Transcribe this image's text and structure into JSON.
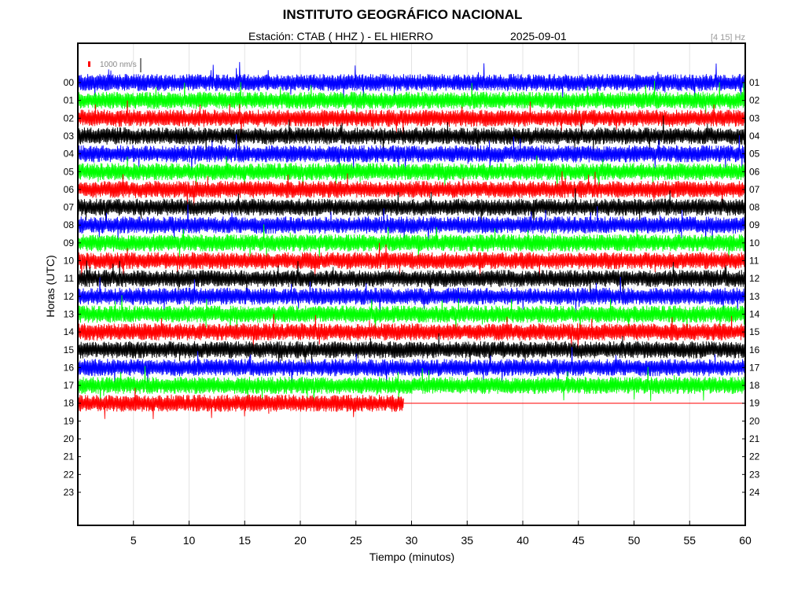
{
  "header": {
    "title": "INSTITUTO GEOGRÁFICO NACIONAL",
    "station_line": "Estación:  CTAB ( HHZ ) - EL HIERRO",
    "date": "2025-09-01",
    "filter": "[4 15] Hz"
  },
  "chart_data": {
    "type": "line",
    "xlabel": "Tiempo (minutos)",
    "ylabel": "Horas (UTC)",
    "xlim": [
      0,
      60
    ],
    "x_ticks": [
      5,
      10,
      15,
      20,
      25,
      30,
      35,
      40,
      45,
      50,
      55,
      60
    ],
    "left_hour_labels": [
      "00",
      "01",
      "02",
      "03",
      "04",
      "05",
      "06",
      "07",
      "08",
      "09",
      "10",
      "11",
      "12",
      "13",
      "14",
      "15",
      "16",
      "17",
      "18",
      "19",
      "20",
      "21",
      "22",
      "23"
    ],
    "right_hour_labels": [
      "01",
      "02",
      "03",
      "04",
      "05",
      "06",
      "07",
      "08",
      "09",
      "10",
      "11",
      "12",
      "13",
      "14",
      "15",
      "16",
      "17",
      "18",
      "19",
      "20",
      "21",
      "22",
      "23",
      "24"
    ],
    "scale_bar_label": "1000 nm/s",
    "trace_colors": [
      "#0000ff",
      "#00ff00",
      "#ff0000",
      "#000000"
    ],
    "recorded_hours": 19,
    "last_hour_recorded_minutes": 29.3,
    "grid": true,
    "series": [
      {
        "hour": "00",
        "color": "#0000ff"
      },
      {
        "hour": "01",
        "color": "#00ff00"
      },
      {
        "hour": "02",
        "color": "#ff0000"
      },
      {
        "hour": "03",
        "color": "#000000"
      },
      {
        "hour": "04",
        "color": "#0000ff"
      },
      {
        "hour": "05",
        "color": "#00ff00"
      },
      {
        "hour": "06",
        "color": "#ff0000"
      },
      {
        "hour": "07",
        "color": "#000000"
      },
      {
        "hour": "08",
        "color": "#0000ff"
      },
      {
        "hour": "09",
        "color": "#00ff00"
      },
      {
        "hour": "10",
        "color": "#ff0000"
      },
      {
        "hour": "11",
        "color": "#000000"
      },
      {
        "hour": "12",
        "color": "#0000ff"
      },
      {
        "hour": "13",
        "color": "#00ff00"
      },
      {
        "hour": "14",
        "color": "#ff0000"
      },
      {
        "hour": "15",
        "color": "#000000"
      },
      {
        "hour": "16",
        "color": "#0000ff"
      },
      {
        "hour": "17",
        "color": "#00ff00"
      },
      {
        "hour": "18",
        "color": "#ff0000"
      }
    ]
  }
}
